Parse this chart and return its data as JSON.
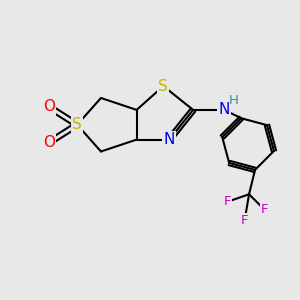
{
  "background_color": "#e8e8e8",
  "atom_colors": {
    "S": "#c8b400",
    "O": "#ff0000",
    "N": "#0000ee",
    "H": "#3a9090",
    "F": "#cc00cc",
    "C": "#000000"
  },
  "bond_color": "#000000",
  "bond_width": 1.5,
  "font_size_atoms": 11,
  "font_size_small": 9.5
}
